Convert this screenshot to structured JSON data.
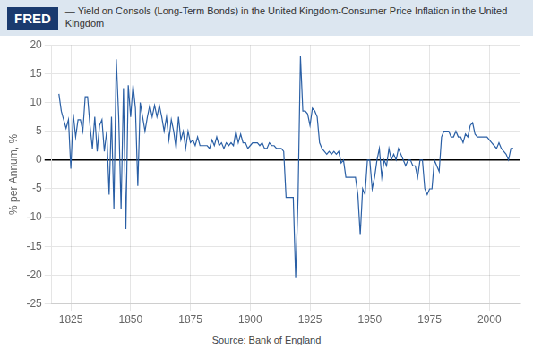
{
  "chart_data": {
    "type": "line",
    "title": "— Yield on Consols (Long-Term Bonds) in the United Kingdom-Consumer Price Inflation in the United Kingdom",
    "ylabel": "% per Annum, %",
    "annotations": [
      "FRED",
      "Source: Bank of England"
    ],
    "color": "#2a5fa5",
    "grid": true,
    "xlim": [
      1817,
      2013
    ],
    "xticks": [
      1825,
      1850,
      1875,
      1900,
      1925,
      1950,
      1975,
      2000
    ],
    "ylim": [
      -25,
      20
    ],
    "yticks": [
      -25,
      -20,
      -15,
      -10,
      -5,
      0,
      5,
      10,
      15,
      20
    ],
    "x": [
      1820,
      1821,
      1822,
      1823,
      1824,
      1825,
      1826,
      1827,
      1828,
      1829,
      1830,
      1831,
      1832,
      1833,
      1834,
      1835,
      1836,
      1837,
      1838,
      1839,
      1840,
      1841,
      1842,
      1843,
      1844,
      1845,
      1846,
      1847,
      1848,
      1849,
      1850,
      1851,
      1852,
      1853,
      1854,
      1855,
      1856,
      1857,
      1858,
      1859,
      1860,
      1861,
      1862,
      1863,
      1864,
      1865,
      1866,
      1867,
      1868,
      1869,
      1870,
      1871,
      1872,
      1873,
      1874,
      1875,
      1876,
      1877,
      1878,
      1879,
      1880,
      1881,
      1882,
      1883,
      1884,
      1885,
      1886,
      1887,
      1888,
      1889,
      1890,
      1891,
      1892,
      1893,
      1894,
      1895,
      1896,
      1897,
      1898,
      1899,
      1900,
      1901,
      1902,
      1903,
      1904,
      1905,
      1906,
      1907,
      1908,
      1909,
      1910,
      1911,
      1912,
      1913,
      1914,
      1915,
      1916,
      1917,
      1918,
      1919,
      1920,
      1921,
      1922,
      1923,
      1924,
      1925,
      1926,
      1927,
      1928,
      1929,
      1930,
      1931,
      1932,
      1933,
      1934,
      1935,
      1936,
      1937,
      1938,
      1939,
      1940,
      1941,
      1942,
      1943,
      1944,
      1945,
      1946,
      1947,
      1948,
      1949,
      1950,
      1951,
      1952,
      1953,
      1954,
      1955,
      1956,
      1957,
      1958,
      1959,
      1960,
      1961,
      1962,
      1963,
      1964,
      1965,
      1966,
      1967,
      1968,
      1969,
      1970,
      1971,
      1972,
      1973,
      1974,
      1975,
      1976,
      1977,
      1978,
      1979,
      1980,
      1981,
      1982,
      1983,
      1984,
      1985,
      1986,
      1987,
      1988,
      1989,
      1990,
      1991,
      1992,
      1993,
      1994,
      1995,
      1996,
      1997,
      1998,
      1999,
      2000,
      2001,
      2002,
      2003,
      2004,
      2005,
      2006,
      2007,
      2008,
      2009,
      2010
    ],
    "values": [
      11.5,
      8.5,
      7,
      5.5,
      7,
      -1.5,
      8,
      4,
      7,
      7,
      5,
      11,
      11,
      6,
      2,
      7.5,
      1.5,
      6,
      7,
      1.5,
      5,
      -6,
      7.5,
      -8.5,
      17.5,
      7.5,
      -8.5,
      12.5,
      -12,
      13,
      7.5,
      13,
      9,
      -4.5,
      10,
      7.5,
      5,
      7.5,
      9.5,
      7.5,
      9.5,
      7.5,
      9.5,
      7.5,
      5,
      7.5,
      3.5,
      7,
      5,
      2,
      7.5,
      3.5,
      5,
      2,
      5,
      3,
      3.5,
      2.5,
      4,
      2.5,
      2.5,
      2.5,
      2.5,
      2,
      3.5,
      2.5,
      4,
      2.5,
      3,
      2,
      3,
      2.5,
      3,
      2.5,
      5,
      3,
      4.5,
      3,
      3,
      2,
      2.5,
      3,
      3,
      3,
      2.5,
      3,
      2,
      2,
      3,
      2.5,
      2.5,
      2,
      2,
      2,
      1.5,
      -6.5,
      -6.5,
      -6.5,
      -6.5,
      -20.5,
      -6.5,
      18,
      8.5,
      8.5,
      8,
      6,
      9,
      8.5,
      7.5,
      3,
      2,
      1.5,
      1,
      1.5,
      1,
      1.5,
      1,
      1.5,
      -0.5,
      0,
      -3,
      -3,
      -3,
      -3,
      -3,
      -6,
      -13,
      -5,
      -6,
      0,
      0,
      -5,
      -3,
      0,
      2,
      -3,
      0,
      -1,
      2,
      0,
      1,
      0,
      2,
      1,
      0,
      -1,
      0,
      0,
      -1,
      -1,
      -3,
      0,
      0,
      -5,
      -6,
      -5,
      -5,
      0,
      -1,
      -2,
      4,
      5,
      5,
      5,
      4,
      4,
      5,
      4,
      4,
      3,
      4.5,
      4,
      6,
      6.5,
      4.5,
      4,
      4,
      4,
      4,
      4,
      3.5,
      3,
      2.5,
      2,
      3,
      2,
      1.5,
      1,
      0,
      2,
      2
    ]
  }
}
